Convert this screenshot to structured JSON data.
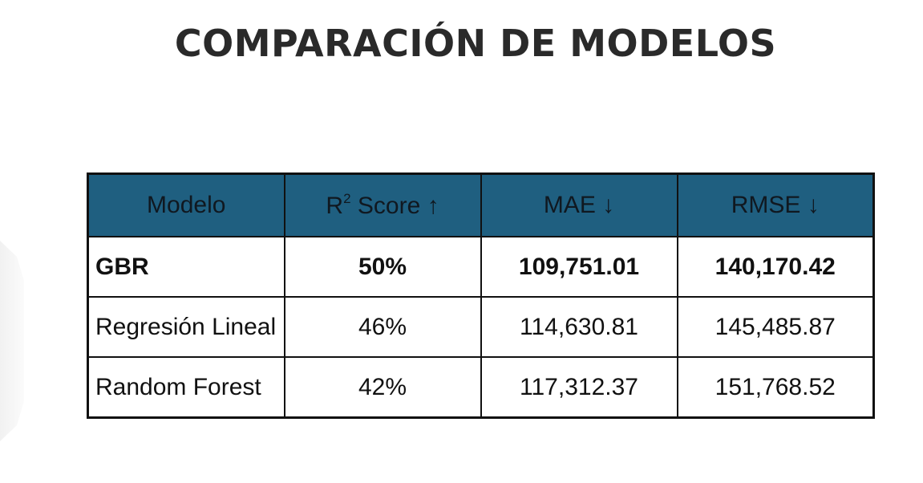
{
  "title": "COMPARACIÓN DE MODELOS",
  "table": {
    "headers": {
      "modelo": "Modelo",
      "r2_prefix": "R",
      "r2_sup": "2",
      "r2_suffix": " Score ↑",
      "mae": "MAE ↓",
      "rmse": "RMSE ↓"
    },
    "rows": [
      {
        "model": "GBR",
        "r2": "50%",
        "mae": "109,751.01",
        "rmse": "140,170.42",
        "highlight": true
      },
      {
        "model": "Regresión Lineal",
        "r2": "46%",
        "mae": "114,630.81",
        "rmse": "145,485.87"
      },
      {
        "model": "Random Forest",
        "r2": "42%",
        "mae": "117,312.37",
        "rmse": "151,768.52"
      }
    ]
  },
  "colors": {
    "header_bg": "#1f5f80",
    "title_text": "#2a2a2a",
    "border": "#111111"
  }
}
